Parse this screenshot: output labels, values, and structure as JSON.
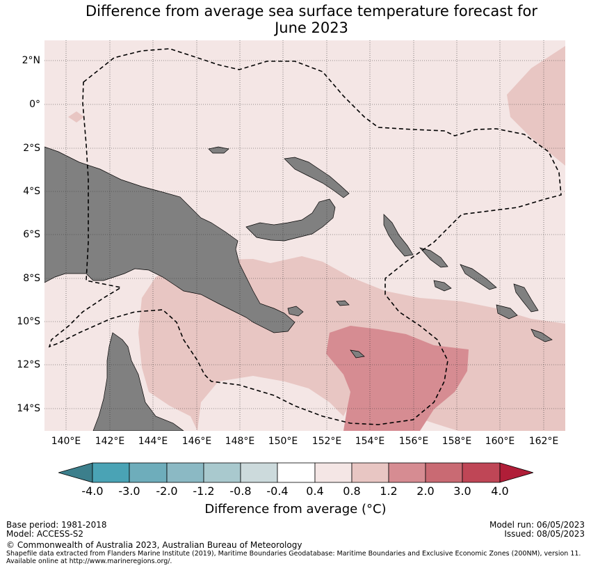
{
  "title": {
    "line1": "Difference from average sea surface temperature forecast for",
    "line2": "June 2023"
  },
  "map": {
    "lat_labels": [
      "2°N",
      "0°",
      "2°S",
      "4°S",
      "6°S",
      "8°S",
      "10°S",
      "12°S",
      "14°S"
    ],
    "lon_labels": [
      "140°E",
      "142°E",
      "144°E",
      "146°E",
      "148°E",
      "150°E",
      "152°E",
      "154°E",
      "156°E",
      "158°E",
      "160°E",
      "162°E"
    ],
    "colors": {
      "band_0.4_0.8": "#f4e6e5",
      "band_0.8_1.2": "#e8c6c3",
      "band_1.2_2.0": "#d68c92",
      "land": "#808080"
    }
  },
  "colorbar": {
    "ticks": [
      "-4.0",
      "-3.0",
      "-2.0",
      "-1.2",
      "-0.8",
      "-0.4",
      "0.4",
      "0.8",
      "1.2",
      "2.0",
      "3.0",
      "4.0"
    ],
    "colors": [
      "#3c7f8c",
      "#4aa3b5",
      "#6eadbb",
      "#8bb9c4",
      "#a9c9ce",
      "#ccdadc",
      "#ffffff",
      "#f4e6e5",
      "#e8c6c3",
      "#d68c92",
      "#c96a73",
      "#bf4656",
      "#b01e38"
    ],
    "label": "Difference from average (°C)"
  },
  "footer": {
    "base_period": "Base period: 1981-2018",
    "model": "Model: ACCESS-S2",
    "model_run": "Model run: 06/05/2023",
    "issued": "Issued: 08/05/2023",
    "copyright": "© Commonwealth of Australia 2023, Australian Bureau of Meteorology",
    "source_line1": "Shapefile data extracted from Flanders Marine Institute (2019), Maritime Boundaries Geodatabase: Maritime Boundaries and Exclusive Economic Zones (200NM), version 11.",
    "source_line2": "Available online at http://www.marineregions.org/."
  }
}
